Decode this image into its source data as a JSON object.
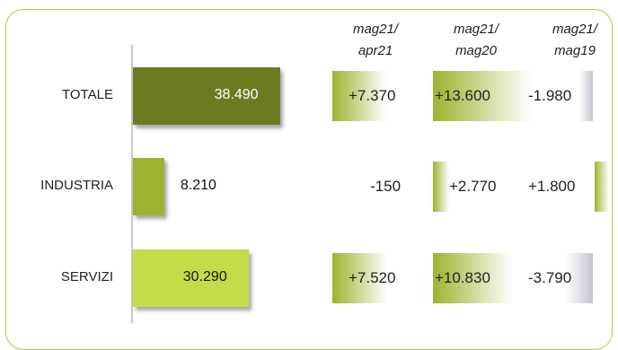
{
  "chart_data": {
    "type": "bar",
    "orientation": "horizontal",
    "categories": [
      "TOTALE",
      "INDUSTRIA",
      "SERVIZI"
    ],
    "values": [
      38490,
      8210,
      30290
    ],
    "value_labels": [
      "38.490",
      "8.210",
      "30.290"
    ],
    "bar_colors": [
      "#6e7a22",
      "#9fb22f",
      "#c5dc49"
    ],
    "label_colors": [
      "#ffffff",
      "#111111",
      "#111111"
    ],
    "xlim": [
      0,
      40000
    ],
    "deltas": {
      "columns": [
        {
          "line1": "mag21/",
          "line2": "apr21"
        },
        {
          "line1": "mag21/",
          "line2": "mag20"
        },
        {
          "line1": "mag21/",
          "line2": "mag19"
        }
      ],
      "rows": [
        [
          {
            "text": "+7.370",
            "value": 7370
          },
          {
            "text": "+13.600",
            "value": 13600
          },
          {
            "text": "-1.980",
            "value": -1980
          }
        ],
        [
          {
            "text": "-150",
            "value": -150
          },
          {
            "text": "+2.770",
            "value": 2770
          },
          {
            "text": "+1.800",
            "value": 1800
          }
        ],
        [
          {
            "text": "+7.520",
            "value": 7520
          },
          {
            "text": "+10.830",
            "value": 10830
          },
          {
            "text": "-3.790",
            "value": -3790
          }
        ]
      ],
      "positive_color": "#9fb22f",
      "negative_color": "#c5c5d0"
    }
  }
}
